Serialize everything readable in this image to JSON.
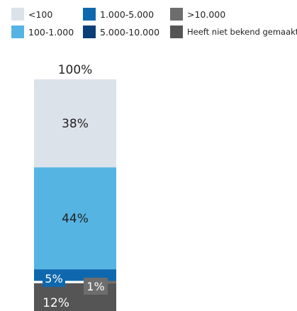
{
  "chart_data": {
    "type": "bar",
    "stacked": true,
    "categories": [
      ""
    ],
    "total_label": "100%",
    "series": [
      {
        "name": "<100",
        "color": "#dce2ea",
        "values": [
          38
        ],
        "label": "38%",
        "label_color": "#222222"
      },
      {
        "name": "100-1.000",
        "color": "#56b4e3",
        "values": [
          44
        ],
        "label": "44%",
        "label_color": "#222222"
      },
      {
        "name": "1.000-5.000",
        "color": "#0f68ad",
        "values": [
          5
        ],
        "label": "5%",
        "label_color": "#ffffff"
      },
      {
        "name": "5.000-10.000",
        "color": "#0a3f77",
        "values": [
          0
        ],
        "label": "",
        "label_color": "#ffffff"
      },
      {
        "name": ">10.000",
        "color": "#6d6d6d",
        "values": [
          1
        ],
        "label": "1%",
        "label_color": "#ffffff"
      },
      {
        "name": "Heeft niet bekend gemaakt",
        "color": "#555555",
        "values": [
          12
        ],
        "label": "12%",
        "label_color": "#ffffff"
      }
    ],
    "ylim": [
      0,
      100
    ],
    "legend_position": "top",
    "grid": false,
    "title": "",
    "xlabel": "",
    "ylabel": ""
  }
}
